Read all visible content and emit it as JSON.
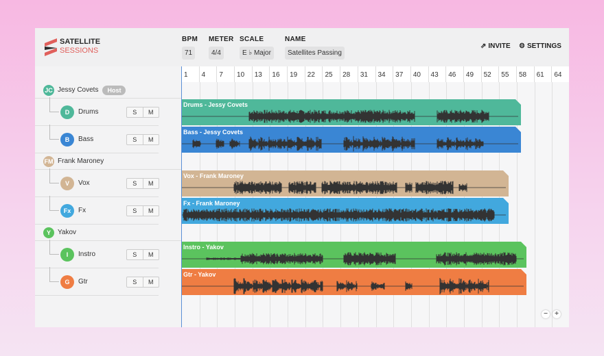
{
  "logo": {
    "line1": "SATELLITE",
    "line2": "SESSIONS"
  },
  "header": {
    "bpm": {
      "label": "BPM",
      "value": "71"
    },
    "meter": {
      "label": "METER",
      "value": "4/4"
    },
    "scale": {
      "label": "SCALE",
      "value": "E ♭ Major"
    },
    "name": {
      "label": "NAME",
      "value": "Satellites Passing"
    },
    "invite": "INVITE",
    "settings": "SETTINGS"
  },
  "ruler": [
    "1",
    "4",
    "7",
    "10",
    "13",
    "16",
    "19",
    "22",
    "25",
    "28",
    "31",
    "34",
    "37",
    "40",
    "43",
    "46",
    "49",
    "52",
    "55",
    "58",
    "61",
    "64"
  ],
  "users": [
    {
      "initials": "JC",
      "name": "Jessy Covets",
      "badge": "Host",
      "color": "#4fb89a",
      "tracks": [
        {
          "initial": "D",
          "name": "Drums",
          "color": "#4fb89a",
          "clip": "Drums - Jessy Covets",
          "clip_color": "#4fb89a"
        },
        {
          "initial": "B",
          "name": "Bass",
          "color": "#3a86d4",
          "clip": "Bass - Jessy Covets",
          "clip_color": "#3a86d4"
        }
      ]
    },
    {
      "initials": "FM",
      "name": "Frank Maroney",
      "color": "#d2b594",
      "tracks": [
        {
          "initial": "V",
          "name": "Vox",
          "color": "#d2b594",
          "clip": "Vox - Frank Maroney",
          "clip_color": "#d2b594"
        },
        {
          "initial": "Fx",
          "name": "Fx",
          "color": "#42a8de",
          "clip": "Fx - Frank Maroney",
          "clip_color": "#42a8de"
        }
      ]
    },
    {
      "initials": "Y",
      "name": "Yakov",
      "color": "#5bc35e",
      "tracks": [
        {
          "initial": "I",
          "name": "Instro",
          "color": "#5bc35e",
          "clip": "Instro - Yakov",
          "clip_color": "#5bc35e"
        },
        {
          "initial": "G",
          "name": "Gtr",
          "color": "#ef7d43",
          "clip": "Gtr - Yakov",
          "clip_color": "#ef7d43"
        }
      ]
    }
  ],
  "track_buttons": {
    "solo": "S",
    "mute": "M"
  },
  "zoom": {
    "out": "−",
    "in": "+"
  }
}
